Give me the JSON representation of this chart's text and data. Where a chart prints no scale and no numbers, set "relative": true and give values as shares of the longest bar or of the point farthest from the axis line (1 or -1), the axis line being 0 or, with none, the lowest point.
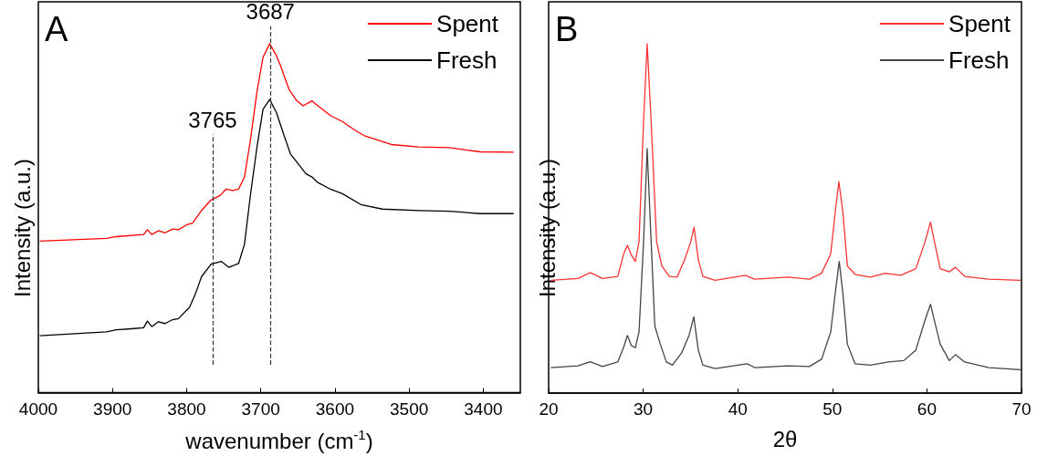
{
  "chart_data": [
    {
      "type": "line",
      "title": "A",
      "xlabel": "wavenumber (cm$^{-1}$)",
      "ylabel": "Intensity (a.u.)",
      "relative": true,
      "xlim": [
        4000,
        3350
      ],
      "xticks": [
        4000,
        3900,
        3800,
        3700,
        3600,
        3500,
        3400
      ],
      "tick_labels": "x",
      "legend": "top right",
      "grid": false,
      "marker": "none",
      "line_style": "solid",
      "ref_lines": [
        {
          "axis": "x",
          "value": 3765,
          "label": "3765",
          "color": "#333333",
          "line_style": "dashed"
        },
        {
          "axis": "x",
          "value": 3687,
          "label": "3687",
          "color": "#333333",
          "line_style": "dashed"
        }
      ],
      "series": [
        {
          "name": "Spent",
          "color": "#ff0000",
          "x": [
            3998,
            3908,
            3895,
            3858,
            3853,
            3847,
            3838,
            3829,
            3819,
            3811,
            3800,
            3792,
            3780,
            3767,
            3755,
            3747,
            3738,
            3730,
            3722,
            3714,
            3705,
            3697,
            3688,
            3679,
            3673,
            3662,
            3652,
            3643,
            3631,
            3623,
            3606,
            3590,
            3573,
            3561,
            3524,
            3487,
            3446,
            3404,
            3359
          ],
          "values": [
            0.434,
            0.442,
            0.447,
            0.453,
            0.467,
            0.453,
            0.464,
            0.458,
            0.469,
            0.467,
            0.481,
            0.486,
            0.522,
            0.552,
            0.565,
            0.583,
            0.579,
            0.583,
            0.618,
            0.724,
            0.865,
            0.961,
            1.0,
            0.966,
            0.935,
            0.869,
            0.838,
            0.822,
            0.836,
            0.822,
            0.794,
            0.777,
            0.752,
            0.737,
            0.711,
            0.704,
            0.702,
            0.69,
            0.689
          ]
        },
        {
          "name": "Fresh",
          "color": "#000000",
          "x": [
            3998,
            3908,
            3895,
            3875,
            3858,
            3853,
            3847,
            3838,
            3829,
            3819,
            3811,
            3796,
            3788,
            3780,
            3767,
            3753,
            3743,
            3730,
            3722,
            3714,
            3705,
            3697,
            3688,
            3679,
            3668,
            3660,
            3652,
            3639,
            3631,
            3623,
            3606,
            3590,
            3565,
            3536,
            3487,
            3446,
            3404,
            3380,
            3359
          ],
          "values": [
            0.163,
            0.174,
            0.18,
            0.183,
            0.186,
            0.205,
            0.189,
            0.203,
            0.198,
            0.209,
            0.212,
            0.245,
            0.284,
            0.332,
            0.368,
            0.376,
            0.359,
            0.37,
            0.425,
            0.566,
            0.706,
            0.812,
            0.84,
            0.803,
            0.733,
            0.684,
            0.662,
            0.627,
            0.618,
            0.602,
            0.583,
            0.57,
            0.539,
            0.526,
            0.522,
            0.52,
            0.513,
            0.513,
            0.513
          ]
        }
      ]
    },
    {
      "type": "line",
      "title": "B",
      "xlabel": "2θ",
      "ylabel": "Intensity (a.u.)",
      "relative": true,
      "xlim": [
        20,
        70
      ],
      "xticks": [
        20,
        30,
        40,
        50,
        60,
        70
      ],
      "tick_labels": "x",
      "legend": "top right",
      "grid": false,
      "marker": "none",
      "line_style": "solid",
      "series": [
        {
          "name": "Spent",
          "color": "#ff3333",
          "x": [
            20.22,
            23.12,
            24.41,
            25.69,
            27.31,
            27.94,
            28.33,
            28.75,
            29.17,
            29.56,
            30.04,
            30.42,
            30.84,
            31.42,
            31.97,
            32.77,
            33.58,
            34.38,
            35.03,
            35.38,
            35.83,
            36.31,
            37.6,
            40.82,
            41.79,
            45.32,
            47.58,
            48.86,
            49.83,
            50.31,
            50.69,
            51.11,
            51.59,
            52.4,
            54.01,
            55.62,
            57.23,
            58.83,
            59.8,
            60.38,
            60.93,
            61.41,
            62.37,
            63.02,
            63.99,
            66.55,
            69.9
          ],
          "values": [
            0.323,
            0.328,
            0.345,
            0.328,
            0.334,
            0.399,
            0.423,
            0.395,
            0.377,
            0.433,
            0.778,
            1.0,
            0.778,
            0.433,
            0.364,
            0.334,
            0.332,
            0.382,
            0.433,
            0.475,
            0.382,
            0.334,
            0.323,
            0.337,
            0.326,
            0.332,
            0.326,
            0.343,
            0.399,
            0.519,
            0.605,
            0.519,
            0.364,
            0.34,
            0.332,
            0.343,
            0.337,
            0.356,
            0.433,
            0.489,
            0.416,
            0.356,
            0.347,
            0.36,
            0.334,
            0.326,
            0.323
          ]
        },
        {
          "name": "Fresh",
          "color": "#444444",
          "x": [
            20.22,
            23.12,
            24.41,
            25.69,
            27.31,
            27.94,
            28.33,
            28.75,
            29.17,
            29.56,
            30.04,
            30.42,
            30.84,
            31.23,
            31.81,
            32.45,
            33.1,
            34.06,
            34.86,
            35.35,
            35.83,
            36.31,
            37.6,
            40.98,
            41.79,
            45.32,
            47.58,
            48.86,
            49.83,
            50.31,
            50.73,
            51.11,
            51.59,
            52.4,
            54.01,
            55.94,
            57.55,
            58.83,
            59.8,
            60.38,
            60.93,
            61.41,
            62.37,
            63.02,
            63.99,
            66.55,
            69.9
          ],
          "values": [
            0.073,
            0.078,
            0.09,
            0.076,
            0.089,
            0.132,
            0.165,
            0.136,
            0.13,
            0.175,
            0.433,
            0.7,
            0.433,
            0.192,
            0.14,
            0.089,
            0.08,
            0.115,
            0.166,
            0.218,
            0.123,
            0.08,
            0.07,
            0.084,
            0.073,
            0.078,
            0.076,
            0.097,
            0.175,
            0.287,
            0.377,
            0.287,
            0.14,
            0.084,
            0.08,
            0.089,
            0.093,
            0.123,
            0.209,
            0.254,
            0.192,
            0.14,
            0.093,
            0.11,
            0.089,
            0.073,
            0.067
          ]
        }
      ]
    }
  ]
}
